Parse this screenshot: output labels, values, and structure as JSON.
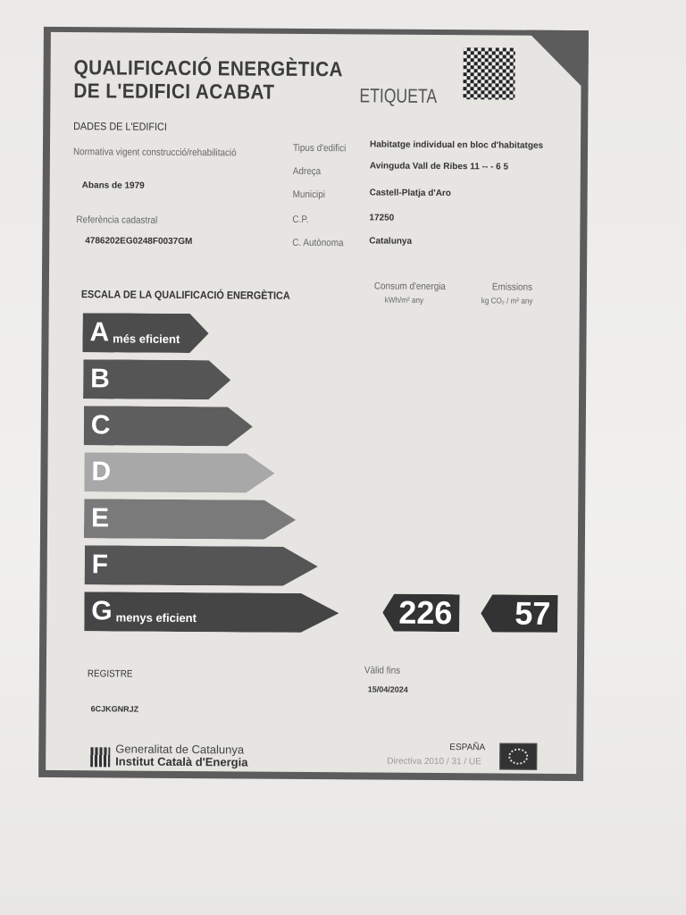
{
  "header": {
    "title_line1": "QUALIFICACIÓ ENERGÈTICA",
    "title_line2": "DE L'EDIFICI ACABAT",
    "label": "ETIQUETA",
    "qr_icon": "qr-code-icon"
  },
  "building": {
    "section": "DADES DE L'EDIFICI",
    "normativa_label": "Normativa vigent construcció/rehabilitació",
    "normativa_value": "Abans de 1979",
    "referencia_label": "Referència cadastral",
    "referencia_value": "4786202EG0248F0037GM",
    "fields": [
      {
        "label": "Tipus d'edifici",
        "value": "Habitatge individual en bloc d'habitatges"
      },
      {
        "label": "Adreça",
        "value": "Avinguda Vall de Ribes 11 -- - 6 5"
      },
      {
        "label": "Municipi",
        "value": "Castell-Platja d'Aro"
      },
      {
        "label": "C.P.",
        "value": "17250"
      },
      {
        "label": "C. Autònoma",
        "value": "Catalunya"
      }
    ]
  },
  "scale": {
    "title": "ESCALA DE LA QUALIFICACIÓ ENERGÈTICA",
    "consum_label": "Consum d'energia",
    "consum_unit": "kWh/m² any",
    "emissions_label": "Emissions",
    "emissions_unit": "kg CO₂ / m² any",
    "classes": [
      {
        "letter": "A",
        "text": "més eficient",
        "color": "#4c4c4c"
      },
      {
        "letter": "B",
        "text": "",
        "color": "#555555"
      },
      {
        "letter": "C",
        "text": "",
        "color": "#5e5e5e"
      },
      {
        "letter": "D",
        "text": "",
        "color": "#a8a8a8"
      },
      {
        "letter": "E",
        "text": "",
        "color": "#7a7a7a"
      },
      {
        "letter": "F",
        "text": "",
        "color": "#555555"
      },
      {
        "letter": "G",
        "text": "menys eficient",
        "color": "#454545"
      }
    ],
    "rating": "G",
    "consum_value": "226",
    "emissions_value": "57"
  },
  "registre": {
    "label": "REGISTRE",
    "value": "6CJKGNRJZ",
    "valid_label": "Vàlid fins",
    "valid_value": "15/04/2024"
  },
  "footer": {
    "org1": "Generalitat de Catalunya",
    "org2": "Institut Català d'Energia",
    "country": "ESPAÑA",
    "directive": "Directiva 2010 / 31 / UE"
  }
}
